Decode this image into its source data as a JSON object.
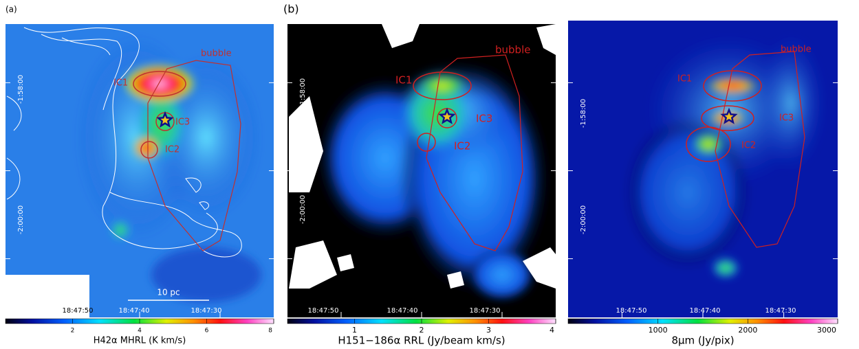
{
  "panels": [
    {
      "tag": "(a)",
      "annotations": {
        "bubble": "bubble",
        "ic1": "IC1",
        "ic3": "IC3",
        "ic2": "IC2"
      },
      "scale_bar": "10 pc",
      "ra_labels": [
        "18:47:50",
        "18:47:40",
        "18:47:30"
      ],
      "dec_labels": [
        "-1:58:00",
        "-2:00:00"
      ],
      "colorbar": {
        "label": "H42α MHRL (K km/s)",
        "ticks": [
          "2",
          "4",
          "6",
          "8"
        ]
      }
    },
    {
      "tag": "(b)",
      "annotations": {
        "bubble": "bubble",
        "ic1": "IC1",
        "ic3": "IC3",
        "ic2": "IC2"
      },
      "ra_labels": [
        "18:47:50",
        "18:47:40",
        "18:47:30"
      ],
      "dec_labels": [
        "-1:58:00",
        "-2:00:00"
      ],
      "colorbar": {
        "label": "H151−186α RRL (Jy/beam km/s)",
        "ticks": [
          "1",
          "2",
          "3",
          "4"
        ]
      }
    },
    {
      "annotations": {
        "bubble": "bubble",
        "ic1": "IC1",
        "ic3": "IC3",
        "ic2": "IC2"
      },
      "ra_labels": [
        "18:47:50",
        "18:47:40",
        "18:47:30"
      ],
      "dec_labels": [
        "-1:58:00",
        "-2:00:00"
      ],
      "colorbar": {
        "label": "8μm (Jy/pix)",
        "ticks": [
          "1000",
          "2000",
          "3000"
        ]
      }
    }
  ]
}
